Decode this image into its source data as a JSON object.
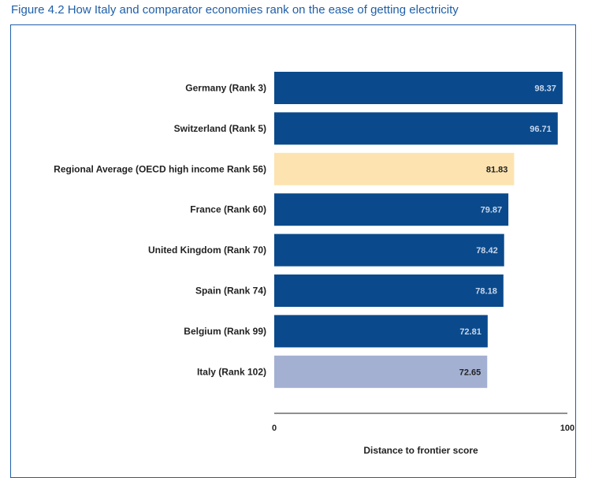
{
  "chart_data": {
    "type": "bar",
    "orientation": "horizontal",
    "title": "Figure 4.2 How Italy and comparator economies rank on the ease of getting electricity",
    "xlabel": "Distance to frontier score",
    "xlim": [
      0,
      100
    ],
    "x_ticks": [
      "0",
      "100"
    ],
    "categories": [
      "Germany (Rank 3)",
      "Switzerland (Rank 5)",
      "Regional Average (OECD high income Rank 56)",
      "France (Rank 60)",
      "United Kingdom (Rank 70)",
      "Spain (Rank 74)",
      "Belgium (Rank 99)",
      "Italy (Rank 102)"
    ],
    "values": [
      98.37,
      96.71,
      81.83,
      79.87,
      78.42,
      78.18,
      72.81,
      72.65
    ],
    "value_labels": [
      "98.37",
      "96.71",
      "81.83",
      "79.87",
      "78.42",
      "78.18",
      "72.81",
      "72.65"
    ],
    "bar_colors": [
      "#0a4a8c",
      "#0a4a8c",
      "#fde3b0",
      "#0a4a8c",
      "#0a4a8c",
      "#0a4a8c",
      "#0a4a8c",
      "#a3b0d2"
    ],
    "label_colors": [
      "#c9d6ea",
      "#c9d6ea",
      "#222222",
      "#c9d6ea",
      "#c9d6ea",
      "#c9d6ea",
      "#c9d6ea",
      "#222222"
    ],
    "grid": false,
    "legend": "none"
  }
}
